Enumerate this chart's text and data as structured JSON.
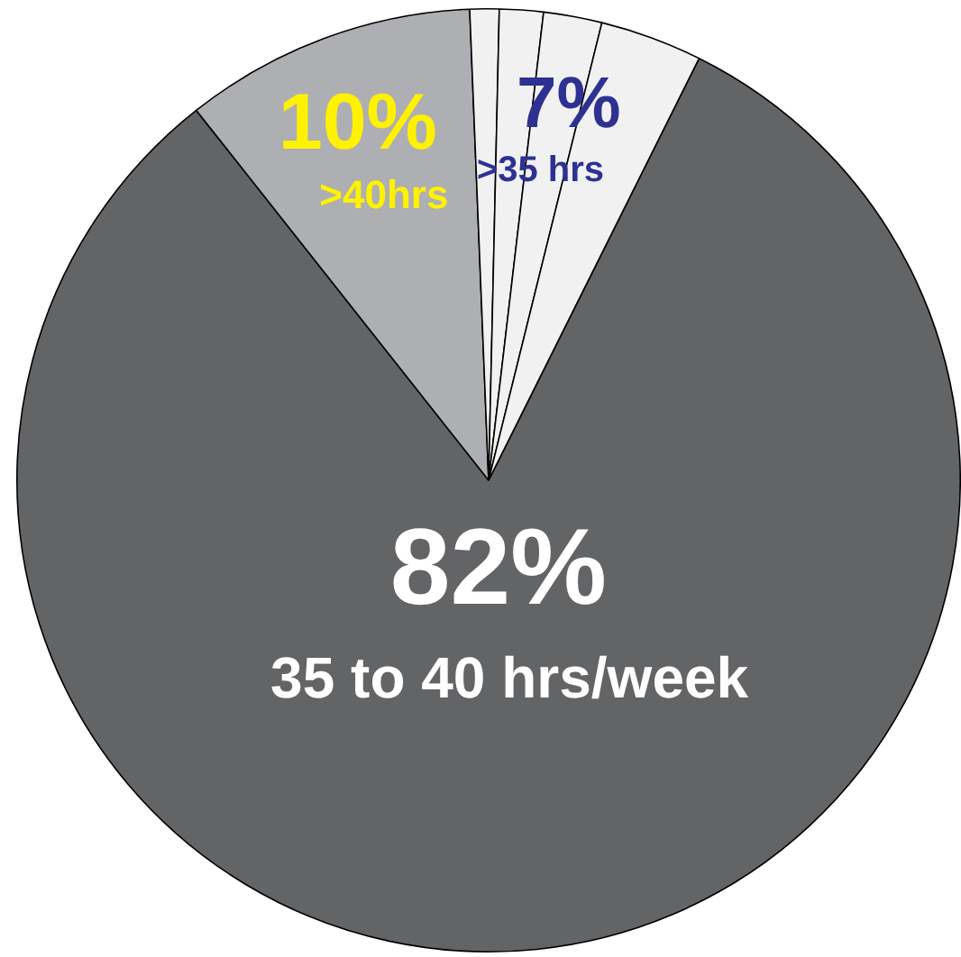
{
  "chart_data": {
    "type": "pie",
    "categories": [
      "35 to 40 hrs/week",
      ">40hrs",
      null,
      null,
      null,
      null
    ],
    "values": [
      82,
      10,
      1,
      1.5,
      2,
      3.5
    ],
    "colors": [
      "#636466",
      "#aeafb2",
      "#f1f1f2",
      "#f1f1f2",
      "#f1f1f2",
      "#f1f1f2"
    ],
    "value_labels": [
      "82%",
      "10%",
      null,
      null,
      null,
      null
    ],
    "annotations": [
      "7%",
      ">35 hrs"
    ],
    "legend": false
  }
}
